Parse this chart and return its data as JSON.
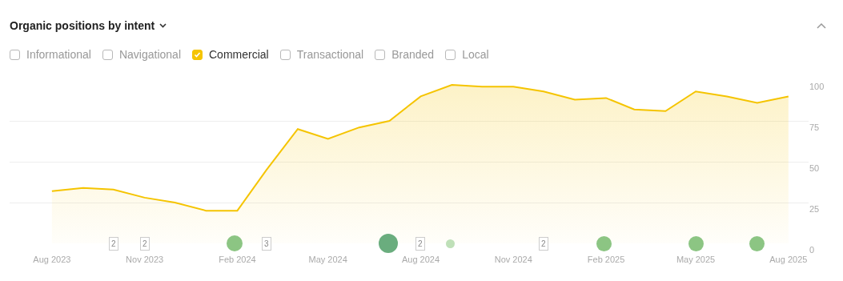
{
  "chart_data": {
    "type": "area",
    "title": "Organic positions by intent",
    "x": [
      "2023-08",
      "2023-09",
      "2023-10",
      "2023-11",
      "2023-12",
      "2024-01",
      "2024-02",
      "2024-03",
      "2024-04",
      "2024-05",
      "2024-06",
      "2024-07",
      "2024-08",
      "2024-09",
      "2024-10",
      "2024-11",
      "2024-12",
      "2025-01",
      "2025-02",
      "2025-03",
      "2025-04",
      "2025-05",
      "2025-06",
      "2025-07",
      "2025-08"
    ],
    "series": [
      {
        "name": "Informational",
        "color": "#b8b8b8",
        "values": [
          null,
          null,
          null,
          null,
          null,
          null,
          null,
          null,
          null,
          null,
          null,
          null,
          null,
          null,
          null,
          null,
          null,
          null,
          null,
          null,
          null,
          null,
          null,
          null,
          null
        ]
      },
      {
        "name": "Navigational",
        "color": "#b8b8b8",
        "values": [
          null,
          null,
          null,
          null,
          null,
          null,
          null,
          null,
          null,
          null,
          null,
          null,
          null,
          null,
          null,
          null,
          null,
          null,
          null,
          null,
          null,
          null,
          null,
          null,
          null
        ]
      },
      {
        "name": "Commercial",
        "color": "#f5c400",
        "values": [
          32,
          34,
          33,
          28,
          25,
          20,
          20,
          45,
          70,
          64,
          71,
          75,
          90,
          97,
          96,
          96,
          93,
          88,
          89,
          82,
          81,
          93,
          90,
          86,
          90
        ]
      },
      {
        "name": "Transactional",
        "color": "#b8b8b8",
        "values": [
          null,
          null,
          null,
          null,
          null,
          null,
          null,
          null,
          null,
          null,
          null,
          null,
          null,
          null,
          null,
          null,
          null,
          null,
          null,
          null,
          null,
          null,
          null,
          null,
          null
        ]
      },
      {
        "name": "Branded",
        "color": "#b8b8b8",
        "values": [
          null,
          null,
          null,
          null,
          null,
          null,
          null,
          null,
          null,
          null,
          null,
          null,
          null,
          null,
          null,
          null,
          null,
          null,
          null,
          null,
          null,
          null,
          null,
          null,
          null
        ]
      },
      {
        "name": "Local",
        "color": "#b8b8b8",
        "values": [
          null,
          null,
          null,
          null,
          null,
          null,
          null,
          null,
          null,
          null,
          null,
          null,
          null,
          null,
          null,
          null,
          null,
          null,
          null,
          null,
          null,
          null,
          null,
          null,
          null
        ]
      }
    ],
    "annotations": [
      {
        "text": "2",
        "x": "2023-10",
        "y": 0
      },
      {
        "text": "2",
        "x": "2023-11",
        "y": 0
      },
      {
        "text": "3",
        "x": "2024-03",
        "y": 0
      },
      {
        "text": "2",
        "x": "2024-08",
        "y": 0
      },
      {
        "text": "2",
        "x": "2024-12",
        "y": 0
      }
    ],
    "xlim": [
      "2023-06-20",
      "2025-08-21"
    ],
    "xticks": [
      {
        "value": "2023-08",
        "label": "Aug 2023"
      },
      {
        "value": "2023-11",
        "label": "Nov 2023"
      },
      {
        "value": "2024-02",
        "label": "Feb 2024"
      },
      {
        "value": "2024-05",
        "label": "May 2024"
      },
      {
        "value": "2024-08",
        "label": "Aug 2024"
      },
      {
        "value": "2024-11",
        "label": "Nov 2024"
      },
      {
        "value": "2025-02",
        "label": "Feb 2025"
      },
      {
        "value": "2025-05",
        "label": "May 2025"
      },
      {
        "value": "2025-08",
        "label": "Aug 2025"
      }
    ],
    "ylim": [
      0,
      100
    ],
    "yticks": [
      0,
      25,
      50,
      75,
      100
    ],
    "grid": "y",
    "legend": "top",
    "marker": "none",
    "line_style": "solid"
  }
}
